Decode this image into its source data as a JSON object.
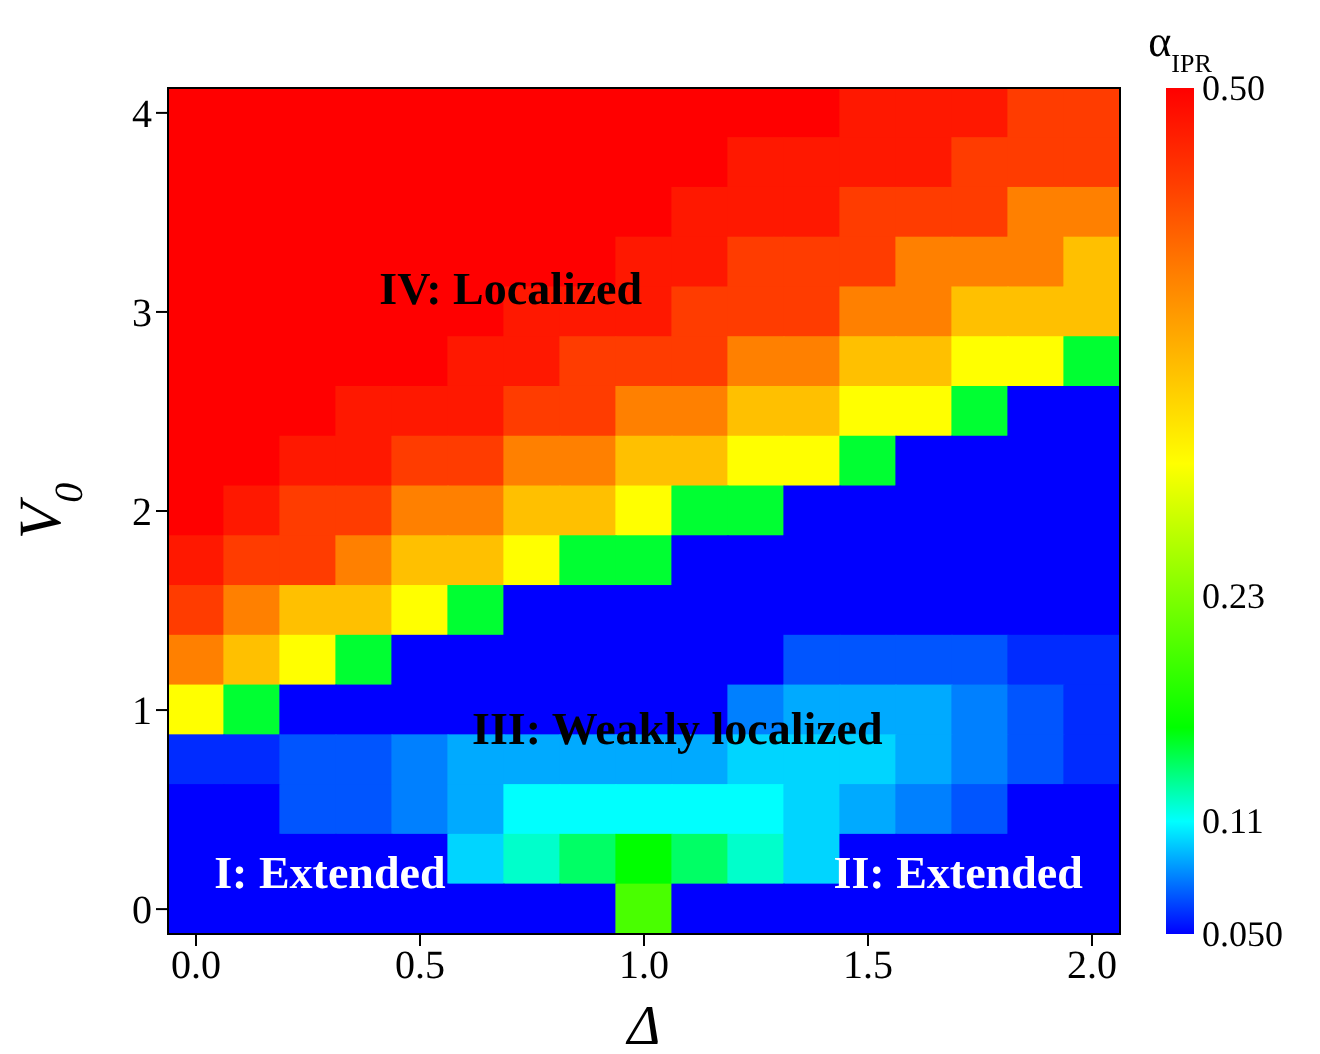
{
  "chart_data": {
    "type": "heatmap",
    "xlabel": "Δ",
    "ylabel": "V$_{0}$",
    "clabel": "α$_{IPR}$",
    "categories": [
      "0.0",
      null,
      null,
      null,
      "0.5",
      null,
      null,
      null,
      "1.0",
      null,
      null,
      null,
      "1.5",
      null,
      null,
      null,
      "2.0"
    ],
    "y_categories": [
      "4",
      null,
      null,
      null,
      "3",
      null,
      null,
      null,
      "2",
      null,
      null,
      null,
      "1",
      null,
      null,
      null,
      "0"
    ],
    "clim": [
      0.05,
      0.5
    ],
    "cticks": [
      {
        "value": 0.05,
        "label": "0.050"
      },
      {
        "value": 0.11,
        "label": "0.11"
      },
      {
        "value": 0.23,
        "label": "0.23"
      },
      {
        "value": 0.5,
        "label": "0.50"
      }
    ],
    "cells": [
      [
        0.5,
        0.5,
        0.5,
        0.5,
        0.5,
        0.5,
        0.5,
        0.5,
        0.5,
        0.5,
        0.5,
        0.5,
        0.48,
        0.48,
        0.48,
        0.45,
        0.45
      ],
      [
        0.5,
        0.5,
        0.5,
        0.5,
        0.5,
        0.5,
        0.5,
        0.5,
        0.5,
        0.5,
        0.48,
        0.48,
        0.48,
        0.48,
        0.45,
        0.45,
        0.45
      ],
      [
        0.5,
        0.5,
        0.5,
        0.5,
        0.5,
        0.5,
        0.5,
        0.5,
        0.5,
        0.48,
        0.48,
        0.48,
        0.45,
        0.45,
        0.45,
        0.4,
        0.4
      ],
      [
        0.5,
        0.5,
        0.5,
        0.5,
        0.5,
        0.5,
        0.5,
        0.5,
        0.48,
        0.48,
        0.45,
        0.45,
        0.45,
        0.4,
        0.4,
        0.4,
        0.35
      ],
      [
        0.5,
        0.5,
        0.5,
        0.5,
        0.5,
        0.5,
        0.48,
        0.48,
        0.48,
        0.45,
        0.45,
        0.45,
        0.4,
        0.4,
        0.35,
        0.35,
        0.35
      ],
      [
        0.5,
        0.5,
        0.5,
        0.5,
        0.5,
        0.48,
        0.48,
        0.45,
        0.45,
        0.45,
        0.4,
        0.4,
        0.35,
        0.35,
        0.3,
        0.3,
        0.15
      ],
      [
        0.5,
        0.5,
        0.5,
        0.48,
        0.48,
        0.48,
        0.45,
        0.45,
        0.4,
        0.4,
        0.35,
        0.35,
        0.3,
        0.3,
        0.15,
        0.05,
        0.05
      ],
      [
        0.5,
        0.5,
        0.48,
        0.48,
        0.45,
        0.45,
        0.4,
        0.4,
        0.35,
        0.35,
        0.3,
        0.3,
        0.15,
        0.05,
        0.05,
        0.05,
        0.05
      ],
      [
        0.5,
        0.48,
        0.45,
        0.45,
        0.4,
        0.4,
        0.35,
        0.35,
        0.3,
        0.15,
        0.15,
        0.05,
        0.05,
        0.05,
        0.05,
        0.05,
        0.05
      ],
      [
        0.48,
        0.45,
        0.45,
        0.4,
        0.35,
        0.35,
        0.3,
        0.15,
        0.15,
        0.05,
        0.05,
        0.05,
        0.05,
        0.05,
        0.05,
        0.05,
        0.05
      ],
      [
        0.45,
        0.4,
        0.35,
        0.35,
        0.3,
        0.15,
        0.05,
        0.05,
        0.05,
        0.05,
        0.05,
        0.05,
        0.05,
        0.05,
        0.05,
        0.05,
        0.05
      ],
      [
        0.4,
        0.35,
        0.3,
        0.15,
        0.05,
        0.05,
        0.05,
        0.05,
        0.05,
        0.05,
        0.05,
        0.07,
        0.07,
        0.07,
        0.07,
        0.06,
        0.06
      ],
      [
        0.3,
        0.15,
        0.05,
        0.05,
        0.05,
        0.05,
        0.05,
        0.05,
        0.05,
        0.05,
        0.08,
        0.09,
        0.09,
        0.09,
        0.08,
        0.07,
        0.06
      ],
      [
        0.06,
        0.06,
        0.07,
        0.07,
        0.08,
        0.09,
        0.09,
        0.09,
        0.09,
        0.09,
        0.1,
        0.1,
        0.1,
        0.09,
        0.08,
        0.07,
        0.06
      ],
      [
        0.05,
        0.05,
        0.07,
        0.07,
        0.08,
        0.09,
        0.11,
        0.11,
        0.11,
        0.11,
        0.11,
        0.1,
        0.09,
        0.08,
        0.07,
        0.05,
        0.05
      ],
      [
        0.05,
        0.05,
        0.05,
        0.05,
        0.05,
        0.1,
        0.12,
        0.14,
        0.16,
        0.14,
        0.12,
        0.1,
        0.05,
        0.05,
        0.05,
        0.05,
        0.05
      ],
      [
        0.05,
        0.05,
        0.05,
        0.05,
        0.05,
        0.05,
        0.05,
        0.05,
        0.2,
        0.05,
        0.05,
        0.05,
        0.05,
        0.05,
        0.05,
        0.05,
        0.05
      ]
    ],
    "annotations": [
      "IV: Localized",
      "III: Weakly localized",
      "I: Extended",
      "II: Extended"
    ]
  }
}
